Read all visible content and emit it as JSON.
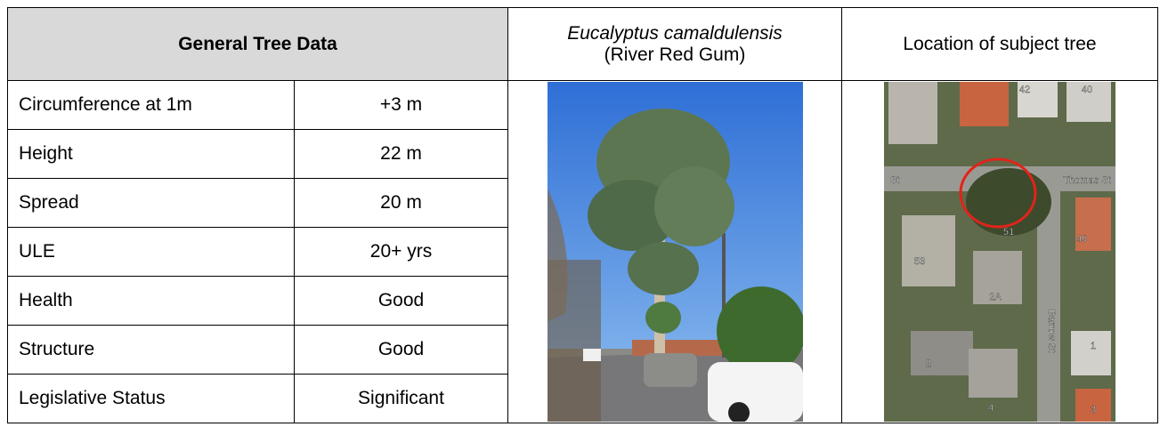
{
  "table": {
    "header": {
      "general": "General Tree Data",
      "species": "Eucalyptus camaldulensis",
      "common_name": "(River Red Gum)",
      "location": "Location of subject tree"
    },
    "rows": [
      [
        "Circumference at 1m",
        "+3 m"
      ],
      [
        "Height",
        "22 m"
      ],
      [
        "Spread",
        "20 m"
      ],
      [
        "ULE",
        "20+ yrs"
      ],
      [
        "Health",
        "Good"
      ],
      [
        "Structure",
        "Good"
      ],
      [
        "Legislative Status",
        "Significant"
      ]
    ]
  },
  "map_labels": {
    "street_1": "Thomas St",
    "street_2": "Barrow St",
    "street_3": "St",
    "numbers": [
      "51",
      "53",
      "49",
      "2A",
      "1",
      "2",
      "4",
      "3",
      "42",
      "40"
    ]
  }
}
